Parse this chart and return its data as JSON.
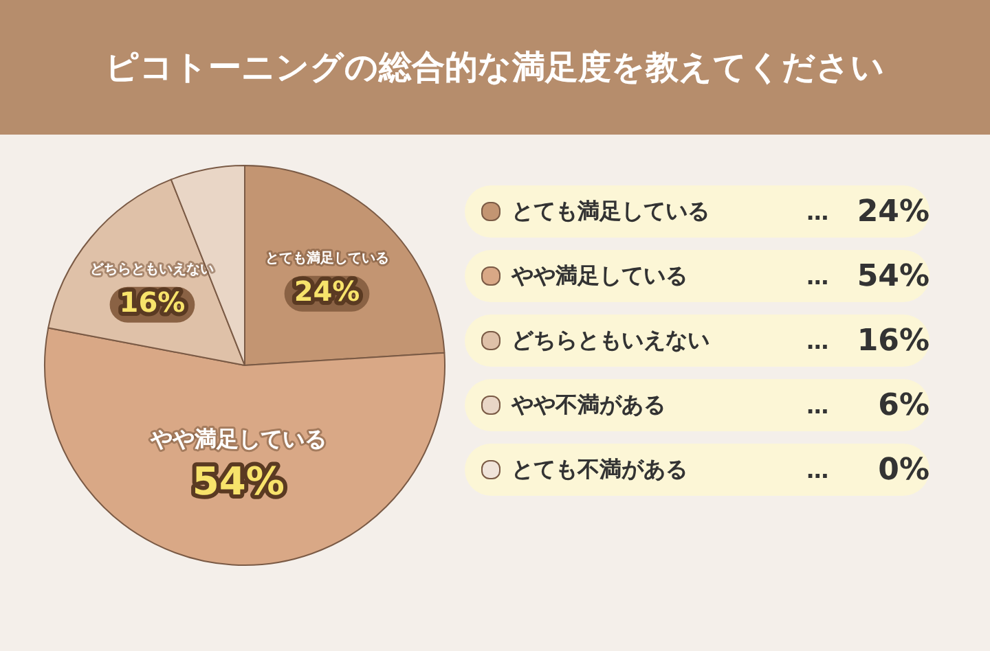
{
  "chart_data": {
    "type": "pie",
    "title": "ピコトーニングの総合的な満足度を教えてください",
    "categories": [
      "とても満足している",
      "やや満足している",
      "どちらともいえない",
      "やや不満がある",
      "とても不満がある"
    ],
    "values": [
      24,
      54,
      16,
      6,
      0
    ],
    "colors": [
      "#c39572",
      "#d9a886",
      "#dfc1a8",
      "#e9d6c6",
      "#f0e4da"
    ],
    "value_labels": [
      "24%",
      "54%",
      "16%",
      "6%",
      "0%"
    ],
    "annotations": [
      "…"
    ],
    "legend": "right"
  }
}
